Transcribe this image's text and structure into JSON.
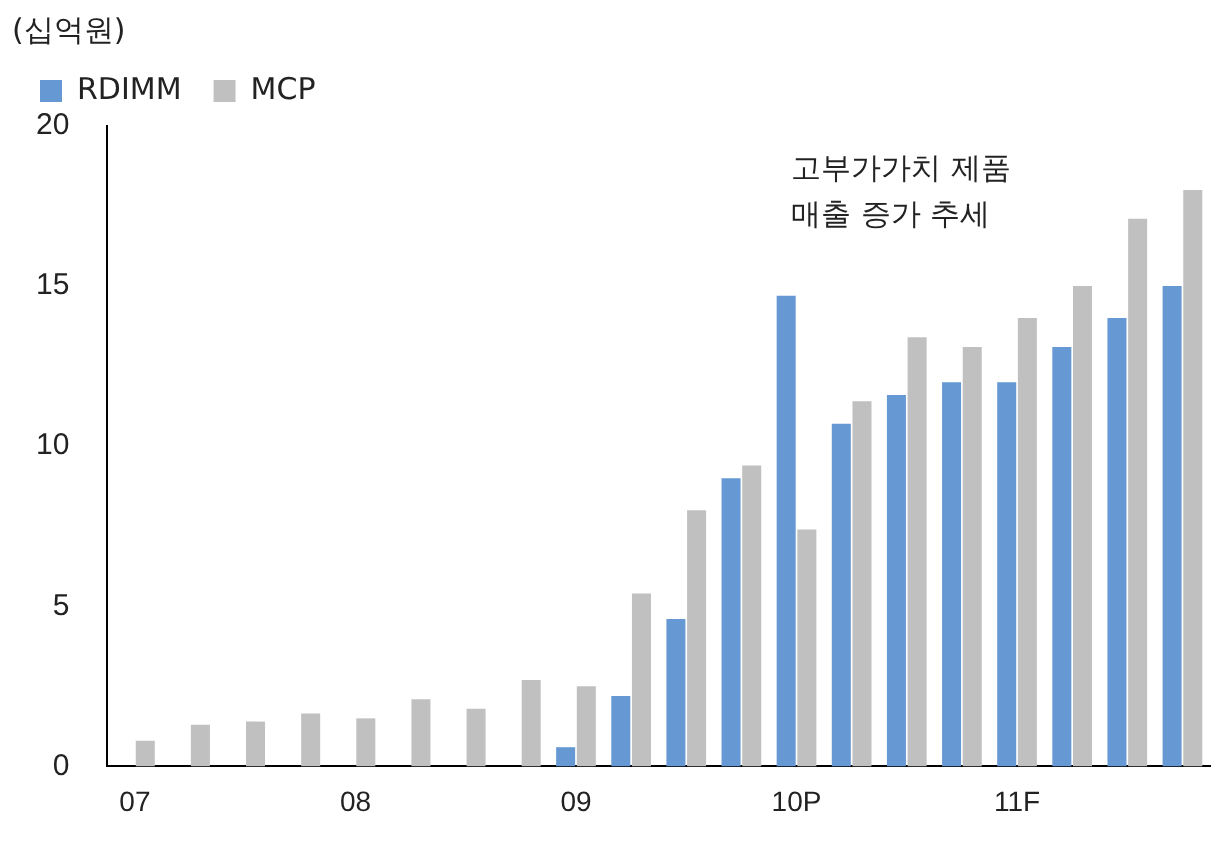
{
  "chart_data": {
    "type": "bar",
    "ylabel": "(십억원)",
    "categories": [
      "07",
      null,
      null,
      null,
      "08",
      null,
      null,
      null,
      "09",
      null,
      null,
      null,
      "10P",
      null,
      null,
      null,
      "11F",
      null,
      null,
      null
    ],
    "series": [
      {
        "name": "RDIMM",
        "color": "#6699d3",
        "values": [
          null,
          null,
          null,
          null,
          null,
          null,
          null,
          null,
          0.6,
          2.2,
          4.6,
          9.0,
          14.7,
          10.7,
          11.6,
          12.0,
          12.0,
          13.1,
          14.0,
          15.0
        ]
      },
      {
        "name": "MCP",
        "color": "#c0c0c0",
        "values": [
          0.8,
          1.3,
          1.4,
          1.65,
          1.5,
          2.1,
          1.8,
          2.7,
          2.5,
          5.4,
          8.0,
          9.4,
          7.4,
          11.4,
          13.4,
          13.1,
          14.0,
          15.0,
          17.1,
          18.0
        ]
      }
    ],
    "ylim": [
      0,
      20
    ],
    "yticks": [
      0,
      5,
      10,
      15,
      20
    ],
    "grid": false,
    "legend": "top left",
    "annotations": [
      "고부가가치 제품\n매출 증가 추세"
    ]
  }
}
